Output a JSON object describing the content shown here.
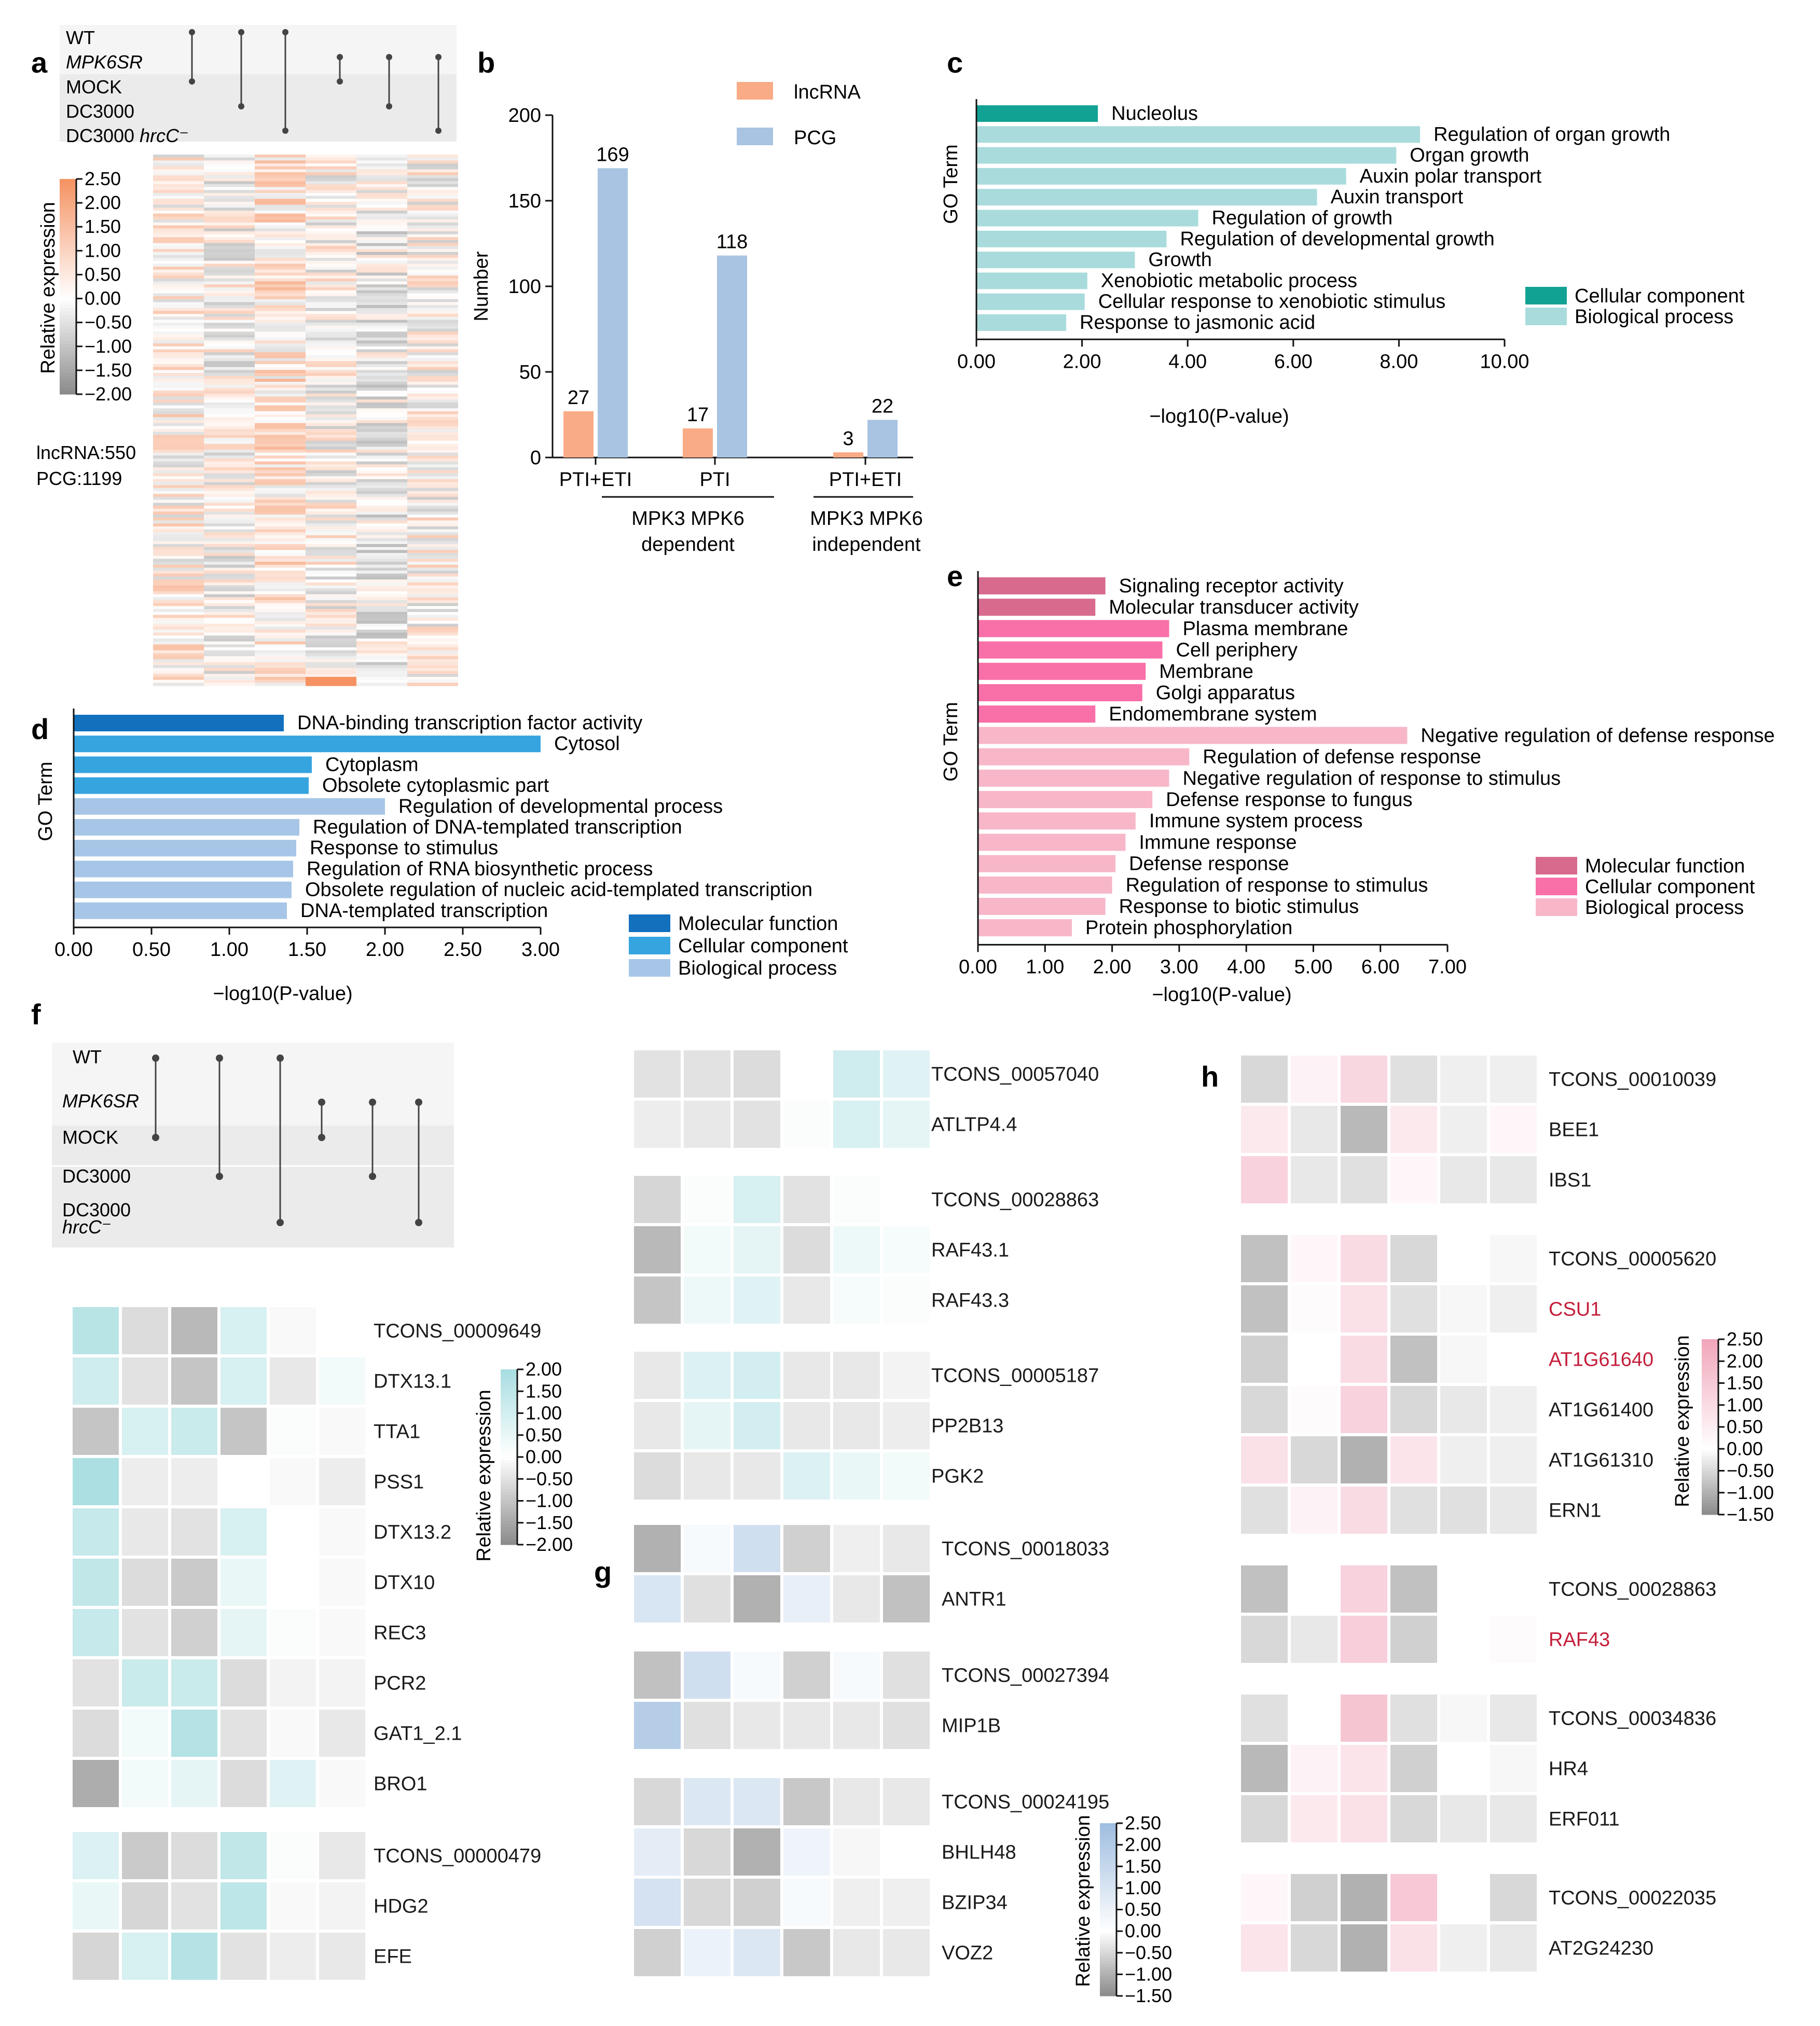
{
  "colors": {
    "lncRNA": "#f9ab86",
    "PCG": "#a8c4e2",
    "c_cellular": "#12a293",
    "c_biological": "#a9dbdc",
    "d_molecular": "#1370bd",
    "d_cellular": "#36a4df",
    "d_biological": "#a7c6e7",
    "e_molecular": "#d86a8e",
    "e_cellular": "#f96fa8",
    "e_biological": "#f7b7c9",
    "heat_orange": "#f59262",
    "heat_teal": "#a7dde0",
    "heat_blue": "#9ebde0",
    "heat_pink": "#f1a5ba",
    "heat_gray": "#8a8a8a"
  },
  "panel_labels": [
    "a",
    "b",
    "c",
    "d",
    "e",
    "f",
    "g",
    "h"
  ],
  "upset": {
    "groups": [
      "WT",
      "MPK6SR",
      "MOCK",
      "DC3000",
      "DC3000 hrcC⁻"
    ],
    "groups_f": [
      "WT",
      "MPK6SR",
      "MOCK",
      "DC3000",
      "DC3000",
      "hrcC⁻"
    ]
  },
  "panel_a": {
    "colorbar_title": "Relative expression",
    "ticks": [
      "2.50",
      "2.00",
      "1.50",
      "1.00",
      "0.50",
      "0.00",
      "−0.50",
      "−1.00",
      "−1.50",
      "−2.00"
    ],
    "counts": [
      "lncRNA:550",
      "PCG:1199"
    ]
  },
  "chart_data": [
    {
      "panel": "b",
      "type": "bar",
      "ylabel": "Number",
      "ylim": [
        0,
        200
      ],
      "yticks": [
        "0",
        "50",
        "100",
        "150",
        "200"
      ],
      "categories": [
        "PTI+ETI",
        "PTI",
        "PTI+ETI"
      ],
      "group_labels": [
        "MPK3 MPK6 dependent",
        "MPK3 MPK6 independent"
      ],
      "group_lines": [
        [
          "MPK3 MPK6",
          "dependent"
        ],
        [
          "MPK3 MPK6",
          "independent"
        ]
      ],
      "series": [
        {
          "name": "lncRNA",
          "values": [
            27,
            17,
            3
          ]
        },
        {
          "name": "PCG",
          "values": [
            169,
            118,
            22
          ]
        }
      ],
      "value_labels": [
        [
          "27",
          "17",
          "3"
        ],
        [
          "169",
          "118",
          "22"
        ]
      ]
    },
    {
      "panel": "c",
      "type": "bar",
      "orientation": "horizontal",
      "ylabel": "GO Term",
      "xlabel": "−log10(P-value)",
      "xlim": [
        0,
        10
      ],
      "xticks": [
        "0.00",
        "2.00",
        "4.00",
        "6.00",
        "8.00",
        "10.00"
      ],
      "categories": [
        "Nucleolus",
        "Regulation of organ growth",
        "Organ growth",
        "Auxin polar transport",
        "Auxin transport",
        "Regulation of growth",
        "Regulation of developmental growth",
        "Growth",
        "Xenobiotic metabolic process",
        "Cellular response to xenobiotic stimulus",
        "Response to jasmonic acid"
      ],
      "values": [
        2.3,
        8.4,
        7.95,
        7.0,
        6.45,
        4.2,
        3.6,
        3.0,
        2.1,
        2.05,
        1.7
      ],
      "classes": [
        "Cellular component",
        "Biological process",
        "Biological process",
        "Biological process",
        "Biological process",
        "Biological process",
        "Biological process",
        "Biological process",
        "Biological process",
        "Biological process",
        "Biological process"
      ],
      "legend": [
        "Cellular component",
        "Biological process"
      ]
    },
    {
      "panel": "d",
      "type": "bar",
      "orientation": "horizontal",
      "ylabel": "GO Term",
      "xlabel": "−log10(P-value)",
      "xlim": [
        0,
        3
      ],
      "xticks": [
        "0.00",
        "0.50",
        "1.00",
        "1.50",
        "2.00",
        "2.50",
        "3.00"
      ],
      "categories": [
        "DNA-binding transcription factor activity",
        "Cytosol",
        "Cytoplasm",
        "Obsolete cytoplasmic part",
        "Regulation of developmental process",
        "Regulation of DNA-templated transcription",
        "Response to stimulus",
        "Regulation of RNA biosynthetic process",
        "Obsolete regulation of nucleic acid-templated transcription",
        "DNA-templated transcription"
      ],
      "values": [
        1.35,
        3.0,
        1.53,
        1.51,
        2.0,
        1.45,
        1.43,
        1.41,
        1.4,
        1.37
      ],
      "classes": [
        "Molecular function",
        "Cellular component",
        "Cellular component",
        "Cellular component",
        "Biological process",
        "Biological process",
        "Biological process",
        "Biological process",
        "Biological process",
        "Biological process"
      ],
      "legend": [
        "Molecular function",
        "Cellular component",
        "Biological process"
      ]
    },
    {
      "panel": "e",
      "type": "bar",
      "orientation": "horizontal",
      "ylabel": "GO Term",
      "xlabel": "−log10(P-value)",
      "xlim": [
        0,
        7
      ],
      "xticks": [
        "0.00",
        "1.00",
        "2.00",
        "3.00",
        "4.00",
        "5.00",
        "6.00",
        "7.00"
      ],
      "categories": [
        "Signaling receptor activity",
        "Molecular transducer activity",
        "Plasma membrane",
        "Cell periphery",
        "Membrane",
        "Golgi apparatus",
        "Endomembrane system",
        "Negative regulation of defense response",
        "Regulation of defense response",
        "Negative regulation of response to stimulus",
        "Defense response to fungus",
        "Immune system process",
        "Immune response",
        "Defense response",
        "Regulation of response to stimulus",
        "Response to biotic stimulus",
        "Protein phosphorylation"
      ],
      "values": [
        1.9,
        1.75,
        2.85,
        2.75,
        2.5,
        2.45,
        1.75,
        6.4,
        3.15,
        2.85,
        2.6,
        2.35,
        2.2,
        2.05,
        2.0,
        1.9,
        1.4
      ],
      "classes": [
        "Molecular function",
        "Molecular function",
        "Cellular component",
        "Cellular component",
        "Cellular component",
        "Cellular component",
        "Cellular component",
        "Biological process",
        "Biological process",
        "Biological process",
        "Biological process",
        "Biological process",
        "Biological process",
        "Biological process",
        "Biological process",
        "Biological process",
        "Biological process"
      ],
      "legend": [
        "Molecular function",
        "Cellular component",
        "Biological process"
      ]
    }
  ],
  "heatmaps": {
    "colorbar_title": "Relative expression",
    "f": {
      "ticks": [
        "2.00",
        "1.50",
        "1.00",
        "0.50",
        "0.00",
        "−0.50",
        "−1.00",
        "−1.50",
        "−2.00"
      ],
      "groups": [
        {
          "rows": [
            {
              "label": "TCONS_00009649",
              "values": [
                1.6,
                -0.6,
                -1.2,
                0.9,
                -0.1,
                0.0
              ]
            },
            {
              "label": "DTX13.1",
              "values": [
                1.1,
                -0.5,
                -1.0,
                0.9,
                -0.4,
                0.3
              ]
            },
            {
              "label": "TTA1",
              "values": [
                -1.0,
                0.9,
                1.2,
                -1.0,
                0.1,
                -0.1
              ]
            },
            {
              "label": "PSS1",
              "values": [
                1.9,
                -0.3,
                -0.3,
                0.0,
                -0.1,
                -0.3
              ]
            },
            {
              "label": "DTX13.2",
              "values": [
                1.3,
                -0.4,
                -0.5,
                0.9,
                0.0,
                -0.1
              ]
            },
            {
              "label": "DTX10",
              "values": [
                1.4,
                -0.6,
                -0.9,
                0.5,
                0.0,
                -0.1
              ]
            },
            {
              "label": "REC3",
              "values": [
                1.3,
                -0.5,
                -0.8,
                0.6,
                0.1,
                -0.1
              ]
            },
            {
              "label": "PCR2",
              "values": [
                -0.5,
                1.2,
                1.2,
                -0.6,
                -0.2,
                -0.2
              ]
            },
            {
              "label": "GAT1_2.1",
              "values": [
                -0.6,
                0.3,
                1.7,
                -0.5,
                -0.1,
                -0.4
              ]
            },
            {
              "label": "BRO1",
              "values": [
                -1.4,
                0.3,
                0.6,
                -0.6,
                0.7,
                -0.1
              ]
            }
          ]
        },
        {
          "rows": [
            {
              "label": "TCONS_00000479",
              "values": [
                0.8,
                -0.9,
                -0.6,
                1.4,
                0.1,
                -0.4
              ]
            },
            {
              "label": "HDG2",
              "values": [
                0.5,
                -0.7,
                -0.5,
                1.5,
                -0.1,
                -0.2
              ]
            },
            {
              "label": "EFE",
              "values": [
                -0.7,
                0.9,
                1.7,
                -0.5,
                -0.3,
                -0.4
              ]
            }
          ]
        }
      ]
    },
    "g_top": {
      "groups": [
        {
          "rows": [
            {
              "label": "TCONS_00057040",
              "values": [
                -0.5,
                -0.5,
                -0.6,
                0.0,
                1.1,
                0.7
              ]
            },
            {
              "label": "ATLTP4.4",
              "values": [
                -0.3,
                -0.4,
                -0.5,
                0.1,
                0.9,
                0.6
              ]
            }
          ]
        },
        {
          "rows": [
            {
              "label": "TCONS_00028863",
              "values": [
                -0.7,
                0.1,
                0.9,
                -0.5,
                0.1,
                0.0
              ]
            },
            {
              "label": "RAF43.1",
              "values": [
                -1.2,
                0.3,
                0.6,
                -0.6,
                0.4,
                0.2
              ]
            },
            {
              "label": "RAF43.3",
              "values": [
                -1.0,
                0.4,
                0.7,
                -0.4,
                0.2,
                0.1
              ]
            }
          ]
        },
        {
          "rows": [
            {
              "label": "TCONS_00005187",
              "values": [
                -0.4,
                0.8,
                1.0,
                -0.4,
                -0.4,
                -0.2
              ]
            },
            {
              "label": "PP2B13",
              "values": [
                -0.4,
                0.6,
                1.0,
                -0.4,
                -0.4,
                -0.3
              ]
            },
            {
              "label": "PGK2",
              "values": [
                -0.6,
                -0.4,
                -0.4,
                0.8,
                0.5,
                0.3
              ]
            }
          ]
        }
      ]
    },
    "g": {
      "ticks": [
        "2.50",
        "2.00",
        "1.50",
        "1.00",
        "0.50",
        "0.00",
        "−0.50",
        "−1.00",
        "−1.50"
      ],
      "groups": [
        {
          "rows": [
            {
              "label": "TCONS_00018033",
              "values": [
                -1.0,
                0.2,
                1.2,
                -0.6,
                -0.2,
                -0.3
              ]
            },
            {
              "label": "ANTR1",
              "values": [
                1.0,
                -0.4,
                -1.0,
                0.6,
                -0.3,
                -0.8
              ]
            }
          ]
        },
        {
          "rows": [
            {
              "label": "TCONS_00027394",
              "values": [
                -0.8,
                1.2,
                0.2,
                -0.6,
                0.2,
                -0.4
              ]
            },
            {
              "label": "MIP1B",
              "values": [
                1.9,
                -0.4,
                -0.3,
                -0.3,
                -0.3,
                -0.4
              ]
            }
          ]
        },
        {
          "rows": [
            {
              "label": "TCONS_00024195",
              "values": [
                -0.5,
                0.9,
                0.9,
                -0.7,
                -0.3,
                -0.3
              ]
            },
            {
              "label": "BHLH48",
              "values": [
                0.7,
                -0.5,
                -1.0,
                0.4,
                -0.1,
                0.0
              ]
            },
            {
              "label": "BZIP34",
              "values": [
                1.1,
                -0.5,
                -0.6,
                0.2,
                -0.2,
                -0.2
              ]
            },
            {
              "label": "VOZ2",
              "values": [
                -0.6,
                0.5,
                0.9,
                -0.7,
                -0.3,
                -0.3
              ]
            }
          ]
        }
      ]
    },
    "h": {
      "ticks": [
        "2.50",
        "2.00",
        "1.50",
        "1.00",
        "0.50",
        "0.00",
        "−0.50",
        "−1.00",
        "−1.50"
      ],
      "highlight_color": "#c41e3a",
      "groups": [
        {
          "rows": [
            {
              "label": "TCONS_00010039",
              "values": [
                -0.5,
                0.3,
                0.9,
                -0.4,
                -0.2,
                -0.2
              ],
              "highlight": false
            },
            {
              "label": "BEE1",
              "values": [
                0.5,
                -0.3,
                -0.9,
                0.5,
                -0.2,
                0.2
              ],
              "highlight": false
            },
            {
              "label": "IBS1",
              "values": [
                1.0,
                -0.3,
                -0.4,
                0.2,
                -0.3,
                -0.3
              ],
              "highlight": false
            }
          ]
        },
        {
          "rows": [
            {
              "label": "TCONS_00005620",
              "values": [
                -0.8,
                0.2,
                0.8,
                -0.5,
                0.0,
                -0.1
              ],
              "highlight": false
            },
            {
              "label": "CSU1",
              "values": [
                -0.8,
                0.1,
                0.7,
                -0.4,
                -0.1,
                -0.2
              ],
              "highlight": true
            },
            {
              "label": "AT1G61640",
              "values": [
                -0.6,
                0.0,
                0.8,
                -0.8,
                -0.1,
                0.0
              ],
              "highlight": true
            },
            {
              "label": "AT1G61400",
              "values": [
                -0.5,
                0.1,
                1.0,
                -0.5,
                -0.3,
                -0.2
              ],
              "highlight": false
            },
            {
              "label": "AT1G61310",
              "values": [
                0.7,
                -0.5,
                -1.0,
                0.6,
                -0.2,
                -0.2
              ],
              "highlight": false
            },
            {
              "label": "ERN1",
              "values": [
                -0.4,
                0.3,
                0.8,
                -0.4,
                -0.4,
                -0.3
              ],
              "highlight": false
            }
          ]
        },
        {
          "rows": [
            {
              "label": "TCONS_00028863",
              "values": [
                -0.8,
                0.0,
                1.0,
                -0.8,
                0.0,
                0.0
              ],
              "highlight": false
            },
            {
              "label": "RAF43",
              "values": [
                -0.5,
                -0.3,
                1.1,
                -0.6,
                0.0,
                0.1
              ],
              "highlight": true
            }
          ]
        },
        {
          "rows": [
            {
              "label": "TCONS_00034836",
              "values": [
                -0.4,
                0.0,
                1.3,
                -0.4,
                -0.1,
                -0.3
              ],
              "highlight": false
            },
            {
              "label": "HR4",
              "values": [
                -0.9,
                0.3,
                0.6,
                -0.6,
                0.0,
                -0.1
              ],
              "highlight": false
            },
            {
              "label": "ERF011",
              "values": [
                -0.5,
                0.5,
                0.7,
                -0.5,
                -0.3,
                -0.3
              ],
              "highlight": false
            }
          ]
        },
        {
          "rows": [
            {
              "label": "TCONS_00022035",
              "values": [
                0.2,
                -0.6,
                -1.0,
                1.2,
                0.0,
                -0.5
              ],
              "highlight": false
            },
            {
              "label": "AT2G24230",
              "values": [
                0.6,
                -0.5,
                -1.0,
                0.7,
                -0.2,
                -0.3
              ],
              "highlight": false
            }
          ]
        }
      ]
    }
  }
}
